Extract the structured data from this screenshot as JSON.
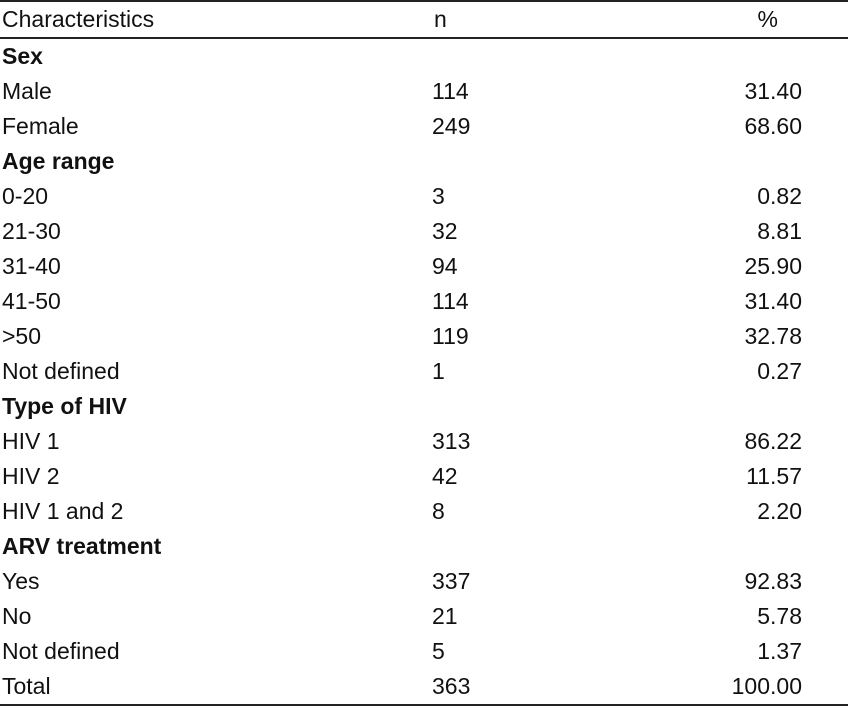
{
  "header": {
    "characteristics": "Characteristics",
    "n": "n",
    "percent": "%"
  },
  "rows": [
    {
      "type": "section",
      "label": "Sex"
    },
    {
      "type": "data",
      "label": "Male",
      "n": "114",
      "pct": "31.40"
    },
    {
      "type": "data",
      "label": "Female",
      "n": "249",
      "pct": "68.60"
    },
    {
      "type": "section",
      "label": "Age range"
    },
    {
      "type": "data",
      "label": "0-20",
      "n": "3",
      "pct": "0.82"
    },
    {
      "type": "data",
      "label": "21-30",
      "n": "32",
      "pct": "8.81"
    },
    {
      "type": "data",
      "label": "31-40",
      "n": "94",
      "pct": "25.90"
    },
    {
      "type": "data",
      "label": "41-50",
      "n": "114",
      "pct": "31.40"
    },
    {
      "type": "data",
      "label": ">50",
      "n": "119",
      "pct": "32.78"
    },
    {
      "type": "data",
      "label": "Not defined",
      "n": "1",
      "pct": "0.27"
    },
    {
      "type": "section",
      "label": "Type of HIV"
    },
    {
      "type": "data",
      "label": "HIV 1",
      "n": "313",
      "pct": "86.22"
    },
    {
      "type": "data",
      "label": "HIV 2",
      "n": "42",
      "pct": "11.57"
    },
    {
      "type": "data",
      "label": "HIV 1 and 2",
      "n": "8",
      "pct": "2.20"
    },
    {
      "type": "section",
      "label": "ARV treatment"
    },
    {
      "type": "data",
      "label": "Yes",
      "n": "337",
      "pct": "92.83"
    },
    {
      "type": "data",
      "label": "No",
      "n": "21",
      "pct": "5.78"
    },
    {
      "type": "data",
      "label": "Not defined",
      "n": "5",
      "pct": "1.37"
    },
    {
      "type": "total",
      "label": "Total",
      "n": "363",
      "pct": "100.00"
    }
  ]
}
